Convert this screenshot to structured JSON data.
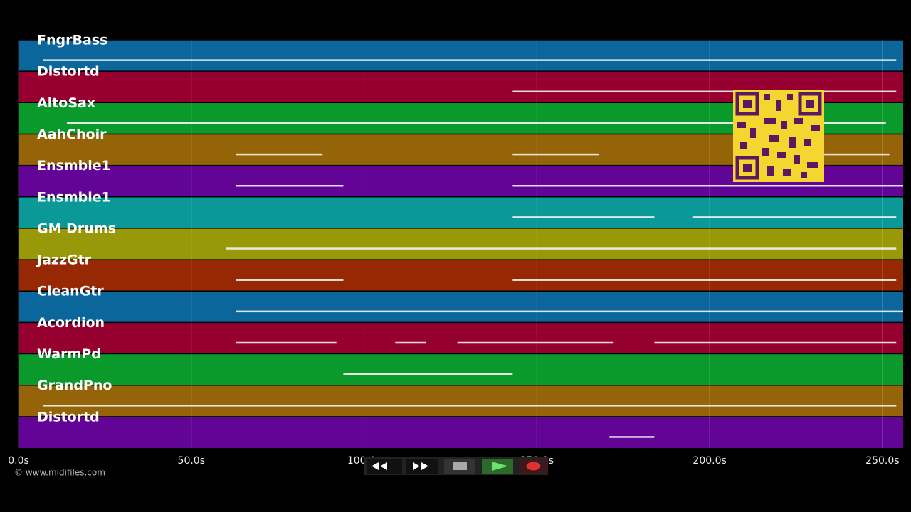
{
  "tracks": [
    {
      "name": "FngrBass",
      "color": "#0b669c",
      "notes": [
        [
          7,
          254
        ]
      ]
    },
    {
      "name": "Distortd",
      "color": "#960030",
      "notes": [
        [
          143,
          254
        ]
      ]
    },
    {
      "name": "AltoSax",
      "color": "#0a9a2c",
      "notes": [
        [
          14,
          251
        ]
      ]
    },
    {
      "name": "AahChoir",
      "color": "#966408",
      "notes": [
        [
          63,
          88
        ],
        [
          143,
          168
        ],
        [
          233,
          252
        ]
      ]
    },
    {
      "name": "Ensmble1",
      "color": "#620496",
      "notes": [
        [
          63,
          94
        ],
        [
          143,
          256
        ]
      ]
    },
    {
      "name": "Ensmble1",
      "color": "#0a9898",
      "notes": [
        [
          143,
          184
        ],
        [
          195,
          254
        ]
      ]
    },
    {
      "name": "GM Drums",
      "color": "#989808",
      "notes": [
        [
          60,
          254
        ]
      ]
    },
    {
      "name": "JazzGtr",
      "color": "#962804",
      "notes": [
        [
          63,
          94
        ],
        [
          143,
          254
        ]
      ]
    },
    {
      "name": "CleanGtr",
      "color": "#0b669c",
      "notes": [
        [
          63,
          256
        ]
      ]
    },
    {
      "name": "Acordion",
      "color": "#960030",
      "notes": [
        [
          63,
          92
        ],
        [
          109,
          118
        ],
        [
          127,
          172
        ],
        [
          184,
          254
        ]
      ]
    },
    {
      "name": "WarmPd",
      "color": "#0a9a2c",
      "notes": [
        [
          94,
          143
        ]
      ]
    },
    {
      "name": "GrandPno",
      "color": "#966408",
      "notes": [
        [
          7,
          254
        ]
      ]
    },
    {
      "name": "Distortd",
      "color": "#620496",
      "notes": [
        [
          171,
          184
        ]
      ]
    }
  ],
  "timeline": {
    "xlim": [
      0,
      256
    ],
    "ticks": [
      {
        "value": 0,
        "label": "0.0s"
      },
      {
        "value": 50,
        "label": "50.0s"
      },
      {
        "value": 100,
        "label": "100.0s"
      },
      {
        "value": 150,
        "label": "150.0s"
      },
      {
        "value": 200,
        "label": "200.0s"
      },
      {
        "value": 250,
        "label": "250.0s"
      }
    ]
  },
  "credit": "© www.midifiles.com"
}
